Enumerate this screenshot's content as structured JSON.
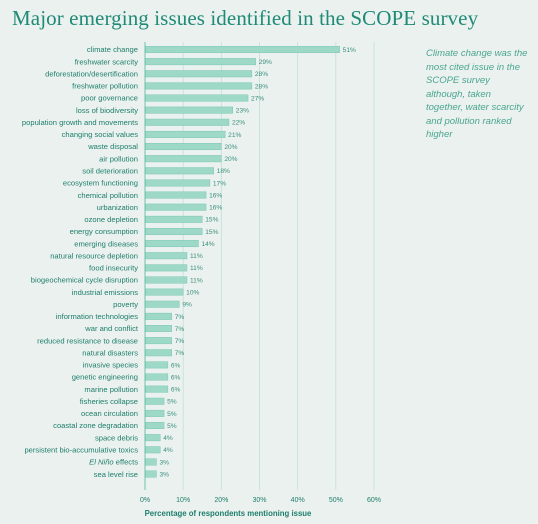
{
  "page": {
    "title": "Major emerging issues identified in the SCOPE survey",
    "note": "Climate change was the most cited issue in the SCOPE survey although, taken together, water scarcity and pollution ranked higher"
  },
  "chart_data": {
    "type": "bar",
    "orientation": "horizontal",
    "title": "Major emerging issues identified in the SCOPE survey",
    "xlabel": "Percentage of respondents mentioning issue",
    "ylabel": "",
    "xlim": [
      0,
      60
    ],
    "xticks": [
      "0%",
      "10%",
      "20%",
      "30%",
      "40%",
      "50%",
      "60%"
    ],
    "grid": true,
    "categories": [
      "climate change",
      "freshwater scarcity",
      "deforestation/desertification",
      "freshwater pollution",
      "poor governance",
      "loss of biodiversity",
      "population growth and movements",
      "changing social values",
      "waste disposal",
      "air pollution",
      "soil deterioration",
      "ecosystem functioning",
      "chemical pollution",
      "urbanization",
      "ozone depletion",
      "energy consumption",
      "emerging diseases",
      "natural resource depletion",
      "food insecurity",
      "biogeochemical cycle disruption",
      "industrial emissions",
      "poverty",
      "information technologies",
      "war and conflict",
      "reduced resistance to disease",
      "natural disasters",
      "invasive species",
      "genetic engineering",
      "marine pollution",
      "fisheries collapse",
      "ocean circulation",
      "coastal zone degradation",
      "space debris",
      "persistent bio-accumulative toxics",
      "El Niño effects",
      "sea level rise"
    ],
    "values": [
      51,
      29,
      28,
      28,
      27,
      23,
      22,
      21,
      20,
      20,
      18,
      17,
      16,
      16,
      15,
      15,
      14,
      11,
      11,
      11,
      10,
      9,
      7,
      7,
      7,
      7,
      6,
      6,
      6,
      5,
      5,
      5,
      4,
      4,
      3,
      3
    ],
    "value_labels": [
      "51%",
      "29%",
      "28%",
      "28%",
      "27%",
      "23%",
      "22%",
      "21%",
      "20%",
      "20%",
      "18%",
      "17%",
      "16%",
      "16%",
      "15%",
      "15%",
      "14%",
      "11%",
      "11%",
      "11%",
      "10%",
      "9%",
      "7%",
      "7%",
      "7%",
      "7%",
      "6%",
      "6%",
      "6%",
      "5%",
      "5%",
      "5%",
      "4%",
      "4%",
      "3%",
      "3%"
    ],
    "italic_categories": [
      "El Niño"
    ]
  },
  "colors": {
    "background": "#eaf1ee",
    "title": "#1f8a77",
    "bar": "#9ed8c7",
    "bar_edge": "#6fc2ab",
    "text": "#1f7e6c",
    "note": "#4aa590",
    "grid": "#bfe2d6"
  }
}
